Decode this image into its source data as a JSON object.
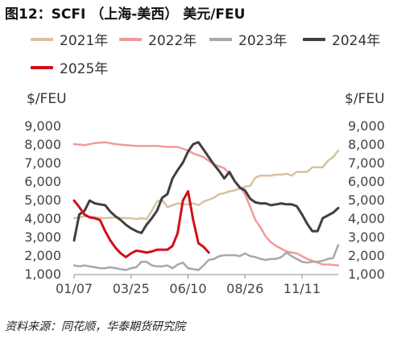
{
  "figure": {
    "title": "图12：SCFI （上海-美西） 美元/FEU",
    "source": "资料来源：同花顺，华泰期货研究院",
    "unit_left": "$/FEU",
    "unit_right": "$/FEU"
  },
  "legend": [
    {
      "label": "2021年",
      "color": "#d8c39f"
    },
    {
      "label": "2022年",
      "color": "#f29a9a"
    },
    {
      "label": "2023年",
      "color": "#a8a8a8"
    },
    {
      "label": "2024年",
      "color": "#404040"
    },
    {
      "label": "2025年",
      "color": "#d0101b"
    }
  ],
  "chart_data": {
    "type": "line",
    "title": "图12：SCFI （上海-美西） 美元/FEU",
    "ylabel_left": "$/FEU",
    "ylabel_right": "$/FEU",
    "x_axis": "week of year",
    "x_ticks": [
      {
        "week": 1,
        "label": "01/07"
      },
      {
        "week": 12,
        "label": "03/25"
      },
      {
        "week": 23,
        "label": "06/10"
      },
      {
        "week": 34,
        "label": "08/26"
      },
      {
        "week": 45,
        "label": "11/11"
      }
    ],
    "xlim": [
      1,
      52
    ],
    "ylim": [
      1000,
      9000
    ],
    "y_ticks": [
      "1,000",
      "2,000",
      "3,000",
      "4,000",
      "5,000",
      "6,000",
      "7,000",
      "8,000",
      "9,000"
    ],
    "y_tick_values": [
      1000,
      2000,
      3000,
      4000,
      5000,
      6000,
      7000,
      8000,
      9000
    ],
    "grid": false,
    "series": [
      {
        "name": "2021年",
        "color": "#d8c39f",
        "x": [
          1,
          3,
          5,
          7,
          9,
          11,
          12,
          13,
          14,
          15,
          16,
          17,
          18,
          19,
          20,
          21,
          22,
          23,
          24,
          25,
          26,
          27,
          28,
          29,
          30,
          31,
          32,
          33,
          34,
          35,
          36,
          37,
          38,
          39,
          40,
          41,
          42,
          43,
          44,
          45,
          46,
          47,
          48,
          49,
          50,
          51,
          52
        ],
        "values": [
          4000,
          4100,
          4050,
          4000,
          4050,
          4000,
          4000,
          3950,
          4000,
          3950,
          4400,
          4900,
          5000,
          4600,
          4700,
          4800,
          4750,
          4750,
          4800,
          4700,
          4900,
          5000,
          5100,
          5300,
          5350,
          5450,
          5500,
          5600,
          5700,
          5750,
          6200,
          6300,
          6300,
          6300,
          6350,
          6350,
          6400,
          6300,
          6500,
          6500,
          6500,
          6750,
          6750,
          6750,
          7100,
          7300,
          7650
        ]
      },
      {
        "name": "2022年",
        "color": "#f29a9a",
        "x": [
          1,
          3,
          5,
          7,
          9,
          11,
          13,
          15,
          17,
          19,
          21,
          23,
          24,
          25,
          26,
          27,
          28,
          29,
          30,
          31,
          32,
          33,
          34,
          35,
          36,
          37,
          38,
          39,
          40,
          41,
          42,
          43,
          44,
          45,
          46,
          47,
          48,
          49,
          50,
          51,
          52
        ],
        "values": [
          8000,
          7950,
          8050,
          8100,
          8000,
          7950,
          7900,
          7900,
          7900,
          7850,
          7850,
          7650,
          7500,
          7400,
          7300,
          7100,
          6900,
          6800,
          6700,
          6400,
          6000,
          5700,
          5300,
          4600,
          3900,
          3500,
          3000,
          2700,
          2500,
          2350,
          2200,
          2150,
          2100,
          1950,
          1800,
          1700,
          1600,
          1500,
          1500,
          1480,
          1450
        ]
      },
      {
        "name": "2023年",
        "color": "#a8a8a8",
        "x": [
          1,
          2,
          3,
          4,
          5,
          6,
          7,
          8,
          9,
          10,
          11,
          12,
          13,
          14,
          15,
          16,
          17,
          18,
          19,
          20,
          21,
          22,
          23,
          24,
          25,
          26,
          27,
          28,
          29,
          30,
          31,
          32,
          33,
          34,
          35,
          36,
          37,
          38,
          39,
          40,
          41,
          42,
          43,
          44,
          45,
          46,
          47,
          48,
          49,
          50,
          51,
          52
        ],
        "values": [
          1450,
          1400,
          1450,
          1400,
          1350,
          1300,
          1300,
          1350,
          1300,
          1250,
          1200,
          1300,
          1350,
          1650,
          1650,
          1450,
          1400,
          1400,
          1450,
          1300,
          1500,
          1600,
          1300,
          1250,
          1200,
          1450,
          1750,
          1800,
          1950,
          2000,
          2000,
          2000,
          1950,
          2100,
          1950,
          1900,
          1800,
          1750,
          1800,
          1800,
          1900,
          2150,
          1950,
          1800,
          1650,
          1600,
          1650,
          1650,
          1700,
          1800,
          1850,
          2550
        ]
      },
      {
        "name": "2024年",
        "color": "#404040",
        "x": [
          1,
          2,
          3,
          4,
          5,
          6,
          7,
          8,
          9,
          10,
          11,
          12,
          13,
          14,
          15,
          16,
          17,
          18,
          19,
          20,
          21,
          22,
          23,
          24,
          25,
          26,
          27,
          28,
          29,
          30,
          31,
          32,
          33,
          34,
          35,
          36,
          37,
          38,
          39,
          40,
          41,
          42,
          43,
          44,
          45,
          46,
          47,
          48,
          49,
          50,
          51,
          52
        ],
        "values": [
          2800,
          4200,
          4400,
          4950,
          4800,
          4750,
          4700,
          4350,
          4100,
          3900,
          3650,
          3450,
          3300,
          3200,
          3650,
          4000,
          4400,
          5100,
          5300,
          6150,
          6600,
          7000,
          7600,
          8000,
          8100,
          7700,
          7300,
          6900,
          6550,
          6150,
          6500,
          6000,
          5650,
          5500,
          5050,
          4850,
          4800,
          4800,
          4700,
          4750,
          4800,
          4750,
          4750,
          4650,
          4200,
          3700,
          3300,
          3300,
          4000,
          4150,
          4300,
          4550
        ]
      },
      {
        "name": "2025年",
        "color": "#d0101b",
        "x": [
          1,
          2,
          3,
          4,
          5,
          6,
          7,
          8,
          9,
          10,
          11,
          12,
          13,
          14,
          15,
          16,
          17,
          18,
          19,
          20,
          21,
          22,
          23,
          24,
          25,
          26,
          27
        ],
        "values": [
          4950,
          4600,
          4200,
          4050,
          4000,
          3900,
          3300,
          2800,
          2400,
          2100,
          1900,
          2100,
          2250,
          2200,
          2150,
          2200,
          2300,
          2300,
          2300,
          2500,
          3200,
          4950,
          5450,
          3900,
          2650,
          2450,
          2150
        ]
      }
    ]
  }
}
